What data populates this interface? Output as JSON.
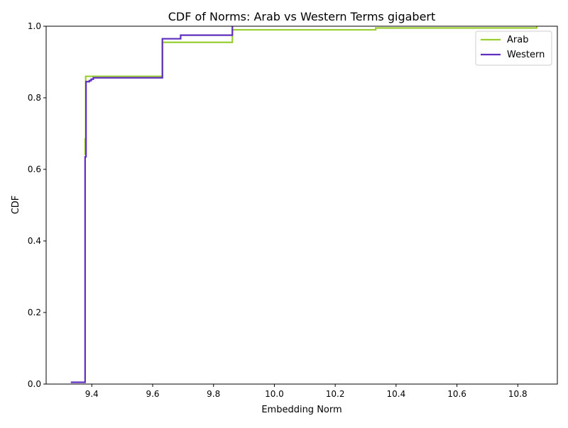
{
  "chart_data": {
    "type": "line",
    "step": true,
    "title": "CDF of Norms: Arab vs Western Terms gigabert",
    "xlabel": "Embedding Norm",
    "ylabel": "CDF",
    "xlim": [
      9.25,
      10.93
    ],
    "ylim": [
      0.0,
      1.0
    ],
    "xticks": [
      9.4,
      9.6,
      9.8,
      10.0,
      10.2,
      10.4,
      10.6,
      10.8
    ],
    "xtick_labels": [
      "9.4",
      "9.6",
      "9.8",
      "10.0",
      "10.2",
      "10.4",
      "10.6",
      "10.8"
    ],
    "yticks": [
      0.0,
      0.2,
      0.4,
      0.6,
      0.8,
      1.0
    ],
    "ytick_labels": [
      "0.0",
      "0.2",
      "0.4",
      "0.6",
      "0.8",
      "1.0"
    ],
    "grid": false,
    "legend_position": "top-right",
    "series": [
      {
        "name": "Arab",
        "color": "#9acd32",
        "x": [
          9.378,
          9.378,
          9.38,
          9.38,
          9.632,
          9.632,
          9.862,
          9.862,
          10.333,
          10.333,
          10.862,
          10.862
        ],
        "y": [
          0.64,
          0.685,
          0.685,
          0.86,
          0.86,
          0.955,
          0.955,
          0.99,
          0.99,
          0.995,
          0.995,
          1.0
        ]
      },
      {
        "name": "Western",
        "color": "#5f2fbf",
        "x": [
          9.331,
          9.378,
          9.378,
          9.381,
          9.381,
          9.392,
          9.392,
          9.398,
          9.398,
          9.405,
          9.405,
          9.632,
          9.632,
          9.692,
          9.692,
          9.862,
          9.862
        ],
        "y": [
          0.005,
          0.005,
          0.635,
          0.635,
          0.845,
          0.845,
          0.848,
          0.848,
          0.852,
          0.852,
          0.856,
          0.856,
          0.965,
          0.965,
          0.975,
          0.975,
          1.0
        ]
      }
    ]
  }
}
